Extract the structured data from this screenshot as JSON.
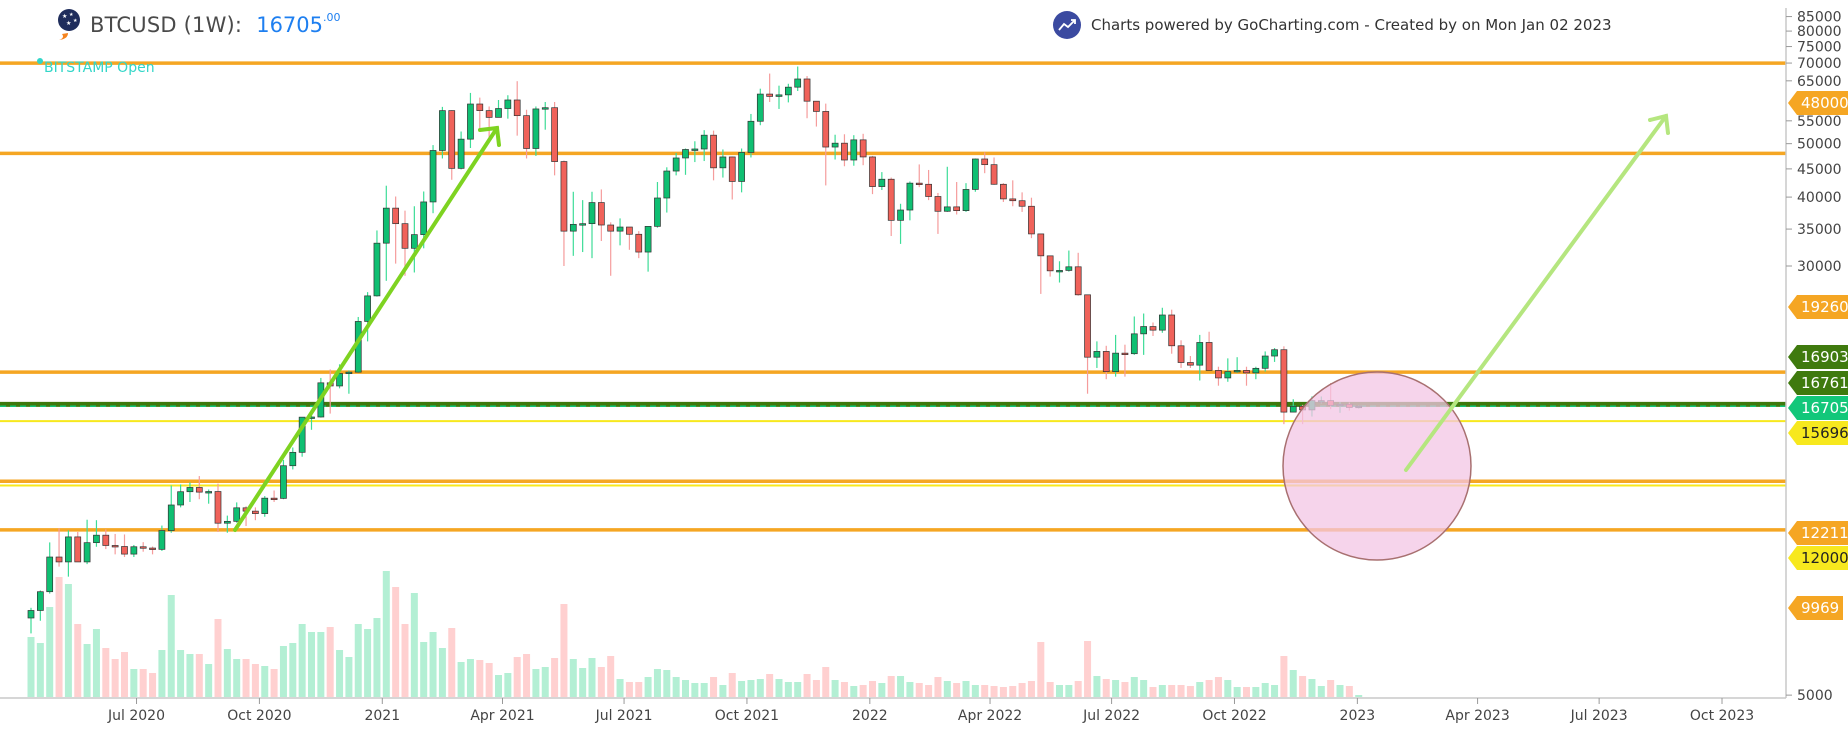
{
  "header": {
    "symbol_title": "BTCUSD (1W):",
    "price": "16705",
    "price_decimals": ".00",
    "source_label": "BITSTAMP Open",
    "credit": "Charts powered by GoCharting.com - Created by  on Mon Jan 02 2023",
    "icons": [
      "astronaut-avatar-icon",
      "trending-up-logo-icon"
    ]
  },
  "colors": {
    "up": "#0fbf72",
    "down": "#f0625a",
    "up_wick": "#3ddc97",
    "down_wick": "#f59c9c",
    "vol_up": "#b3efd4",
    "vol_down": "#ffd0d0",
    "orange": "#f5a623",
    "dark_green": "#3f7a0e",
    "yellow": "#f7e81e",
    "current": "#12c77a",
    "arrow_up": "#7ed321",
    "arrow_target": "#b5e67f",
    "zone_fill": "#f3c6e4",
    "zone_stroke": "#a87070",
    "title_price": "#1e7ff0",
    "source": "#33d6c8"
  },
  "chart_data": {
    "type": "candlestick",
    "interval": "1W",
    "start_week": "2020-04-13",
    "y_scale": "log",
    "ylim": [
      5000,
      88000
    ],
    "y_ticks": [
      85000,
      80000,
      75000,
      70000,
      65000,
      55000,
      50000,
      45000,
      40000,
      35000,
      30000,
      5000
    ],
    "x_ticks": [
      "Jul 2020",
      "Oct 2020",
      "2021",
      "Apr 2021",
      "Jul 2021",
      "Oct 2021",
      "2022",
      "Apr 2022",
      "Jul 2022",
      "Oct 2022",
      "2023",
      "Apr 2023",
      "Jul 2023",
      "Oct 2023"
    ],
    "x_tick_dates": [
      "2020-07-01",
      "2020-10-01",
      "2021-01-01",
      "2021-04-01",
      "2021-07-01",
      "2021-10-01",
      "2022-01-01",
      "2022-04-01",
      "2022-07-01",
      "2022-10-01",
      "2023-01-01",
      "2023-04-01",
      "2023-07-01",
      "2023-10-01"
    ],
    "ohlc": [
      [
        6900,
        7200,
        6470,
        7120
      ],
      [
        7120,
        7740,
        6820,
        7700
      ],
      [
        7700,
        9460,
        7640,
        8900
      ],
      [
        8900,
        10030,
        8550,
        8720
      ],
      [
        8720,
        9950,
        8200,
        9680
      ],
      [
        9680,
        9880,
        8800,
        8720
      ],
      [
        8720,
        10400,
        8640,
        9450
      ],
      [
        9450,
        10380,
        9290,
        9750
      ],
      [
        9750,
        9990,
        9200,
        9340
      ],
      [
        9340,
        9800,
        9000,
        9300
      ],
      [
        9300,
        9780,
        8900,
        9010
      ],
      [
        9010,
        9360,
        8900,
        9290
      ],
      [
        9290,
        9470,
        9100,
        9240
      ],
      [
        9240,
        9300,
        9000,
        9190
      ],
      [
        9190,
        10150,
        9130,
        9940
      ],
      [
        9940,
        12000,
        9850,
        11060
      ],
      [
        11060,
        12050,
        10950,
        11690
      ],
      [
        11690,
        12150,
        11200,
        11900
      ],
      [
        11900,
        12480,
        11330,
        11670
      ],
      [
        11670,
        11800,
        11120,
        11700
      ],
      [
        11700,
        12090,
        9880,
        10250
      ],
      [
        10250,
        10580,
        9850,
        10330
      ],
      [
        10330,
        11180,
        10270,
        10930
      ],
      [
        10930,
        11000,
        10130,
        10780
      ],
      [
        10780,
        10950,
        10380,
        10670
      ],
      [
        10670,
        11480,
        10530,
        11380
      ],
      [
        11380,
        11750,
        11200,
        11370
      ],
      [
        11370,
        13350,
        11330,
        13030
      ],
      [
        13030,
        14060,
        12830,
        13780
      ],
      [
        13780,
        15960,
        13530,
        15960
      ],
      [
        15960,
        16480,
        15140,
        15970
      ],
      [
        15970,
        18800,
        15930,
        18420
      ],
      [
        18420,
        19480,
        16200,
        18180
      ],
      [
        18180,
        19900,
        18000,
        19150
      ],
      [
        19150,
        19400,
        17600,
        19260
      ],
      [
        19260,
        24250,
        19200,
        23800
      ],
      [
        23800,
        26900,
        21900,
        26480
      ],
      [
        26480,
        34800,
        26400,
        33000
      ],
      [
        33000,
        41950,
        28200,
        38200
      ],
      [
        38200,
        40100,
        30300,
        35800
      ],
      [
        35800,
        37800,
        28800,
        32300
      ],
      [
        32300,
        38500,
        29200,
        34200
      ],
      [
        34200,
        40950,
        32300,
        39200
      ],
      [
        39200,
        49700,
        37400,
        48600
      ],
      [
        48600,
        58300,
        47000,
        57400
      ],
      [
        57400,
        57500,
        43000,
        45100
      ],
      [
        45100,
        52600,
        44900,
        50950
      ],
      [
        50950,
        61800,
        49100,
        59000
      ],
      [
        59000,
        60600,
        53300,
        57400
      ],
      [
        57400,
        58400,
        50400,
        55800
      ],
      [
        55800,
        60000,
        55800,
        57900
      ],
      [
        57900,
        61200,
        55500,
        60000
      ],
      [
        60000,
        64900,
        51700,
        56200
      ],
      [
        56200,
        57600,
        47000,
        49000
      ],
      [
        49000,
        58400,
        47500,
        57800
      ],
      [
        57800,
        59500,
        53000,
        58100
      ],
      [
        58100,
        59500,
        43800,
        46400
      ],
      [
        46400,
        46600,
        30000,
        34700
      ],
      [
        34700,
        40900,
        31300,
        35700
      ],
      [
        35700,
        39500,
        31800,
        35800
      ],
      [
        35800,
        40900,
        31000,
        39100
      ],
      [
        39100,
        41300,
        33300,
        35600
      ],
      [
        35600,
        36000,
        28800,
        34700
      ],
      [
        34700,
        36600,
        32700,
        35300
      ],
      [
        35300,
        35100,
        32100,
        34250
      ],
      [
        34250,
        34700,
        31000,
        31800
      ],
      [
        31800,
        35400,
        29300,
        35400
      ],
      [
        35400,
        42600,
        35200,
        39850
      ],
      [
        39850,
        45300,
        37500,
        44600
      ],
      [
        44600,
        48100,
        43800,
        47100
      ],
      [
        47100,
        49000,
        43900,
        48800
      ],
      [
        48800,
        50500,
        46300,
        48900
      ],
      [
        48900,
        52900,
        46500,
        51800
      ],
      [
        51800,
        52800,
        42900,
        45200
      ],
      [
        45200,
        48800,
        43400,
        47300
      ],
      [
        47300,
        47400,
        39600,
        42700
      ],
      [
        42700,
        49000,
        40800,
        48200
      ],
      [
        48200,
        56600,
        47200,
        54900
      ],
      [
        54900,
        62900,
        54000,
        61500
      ],
      [
        61500,
        67000,
        59500,
        60900
      ],
      [
        60900,
        63700,
        57800,
        61300
      ],
      [
        61300,
        64200,
        59400,
        63300
      ],
      [
        63300,
        69000,
        62300,
        65500
      ],
      [
        65500,
        66300,
        55600,
        59700
      ],
      [
        59700,
        59400,
        53700,
        57200
      ],
      [
        57200,
        59100,
        42000,
        49300
      ],
      [
        49300,
        51900,
        46800,
        50100
      ],
      [
        50100,
        52000,
        45500,
        46700
      ],
      [
        46700,
        51800,
        45600,
        50800
      ],
      [
        50800,
        52100,
        45700,
        47300
      ],
      [
        47300,
        47500,
        40500,
        41800
      ],
      [
        41800,
        44400,
        41200,
        43100
      ],
      [
        43100,
        43400,
        34000,
        36300
      ],
      [
        36300,
        38900,
        32900,
        37900
      ],
      [
        37900,
        42700,
        36300,
        42400
      ],
      [
        42400,
        45850,
        41700,
        42200
      ],
      [
        42200,
        44800,
        39500,
        40100
      ],
      [
        40100,
        40700,
        34300,
        37700
      ],
      [
        37700,
        45400,
        37600,
        38400
      ],
      [
        38400,
        42600,
        37200,
        37800
      ],
      [
        37800,
        42400,
        37600,
        41300
      ],
      [
        41300,
        47000,
        40900,
        46900
      ],
      [
        46900,
        48200,
        44200,
        45800
      ],
      [
        45800,
        47200,
        42100,
        42200
      ],
      [
        42200,
        42400,
        39200,
        39700
      ],
      [
        39700,
        42900,
        38500,
        39400
      ],
      [
        39400,
        40800,
        37600,
        38500
      ],
      [
        38500,
        39900,
        33700,
        34300
      ],
      [
        34300,
        34200,
        26700,
        31300
      ],
      [
        31300,
        31000,
        28700,
        29400
      ],
      [
        29400,
        30600,
        28000,
        29450
      ],
      [
        29450,
        32000,
        29300,
        29900
      ],
      [
        29900,
        31700,
        26500,
        26600
      ],
      [
        26600,
        26600,
        17600,
        20500
      ],
      [
        20500,
        21900,
        19600,
        21000
      ],
      [
        21000,
        21500,
        18700,
        19300
      ],
      [
        19300,
        22500,
        18900,
        20850
      ],
      [
        20850,
        21600,
        18900,
        20800
      ],
      [
        20800,
        24300,
        20700,
        22600
      ],
      [
        22600,
        24600,
        20700,
        23300
      ],
      [
        23300,
        23700,
        22400,
        22950
      ],
      [
        22950,
        25200,
        22700,
        24450
      ],
      [
        24450,
        25000,
        20800,
        21500
      ],
      [
        21500,
        22000,
        19600,
        20050
      ],
      [
        20050,
        20600,
        19600,
        19830
      ],
      [
        19830,
        22500,
        18600,
        21800
      ],
      [
        21800,
        22800,
        19400,
        19400
      ],
      [
        19400,
        19700,
        18200,
        18800
      ],
      [
        18800,
        20400,
        18500,
        19300
      ],
      [
        19300,
        20500,
        19200,
        19400
      ],
      [
        19400,
        19700,
        18200,
        19200
      ],
      [
        19200,
        19700,
        18700,
        19570
      ],
      [
        19570,
        21000,
        19300,
        20600
      ],
      [
        20600,
        21300,
        20100,
        21150
      ],
      [
        21150,
        21450,
        15500,
        16300
      ],
      [
        16300,
        17200,
        16300,
        16700
      ],
      [
        16700,
        16800,
        15500,
        16450
      ],
      [
        16450,
        17400,
        16000,
        17100
      ],
      [
        17100,
        17400,
        16900,
        17100
      ],
      [
        17100,
        18400,
        16500,
        16770
      ],
      [
        16770,
        17000,
        16250,
        16840
      ],
      [
        16840,
        16960,
        16400,
        16620
      ],
      [
        16620,
        16760,
        16550,
        16705
      ]
    ],
    "volume": [
      60,
      54,
      90,
      120,
      113,
      73,
      53,
      68,
      49,
      38,
      45,
      28,
      28,
      24,
      47,
      102,
      47,
      43,
      43,
      33,
      78,
      48,
      38,
      38,
      33,
      31,
      28,
      51,
      54,
      73,
      65,
      65,
      70,
      47,
      40,
      73,
      68,
      79,
      126,
      110,
      73,
      104,
      55,
      65,
      49,
      69,
      35,
      38,
      37,
      34,
      22,
      24,
      40,
      43,
      28,
      30,
      39,
      93,
      38,
      29,
      39,
      30,
      41,
      18,
      15,
      15,
      20,
      28,
      27,
      20,
      17,
      14,
      14,
      20,
      12,
      24,
      16,
      17,
      18,
      23,
      18,
      15,
      15,
      23,
      17,
      30,
      17,
      15,
      11,
      12,
      16,
      14,
      21,
      21,
      15,
      14,
      12,
      20,
      16,
      14,
      16,
      12,
      12,
      11,
      10,
      11,
      14,
      16,
      55,
      15,
      12,
      12,
      16,
      56,
      21,
      18,
      17,
      15,
      20,
      17,
      10,
      12,
      12,
      12,
      11,
      15,
      17,
      20,
      17,
      10,
      10,
      10,
      14,
      12,
      41,
      27,
      21,
      18,
      11,
      17,
      12,
      11,
      2
    ],
    "levels": [
      {
        "value": 70000,
        "color": "orange"
      },
      {
        "value": 48000,
        "color": "orange"
      },
      {
        "value": 19260,
        "color": "orange"
      },
      {
        "value": 16903,
        "color": "dark_green"
      },
      {
        "value": 16761,
        "color": "dark_green"
      },
      {
        "value": 15696,
        "color": "yellow"
      },
      {
        "value": 12211,
        "color": "orange"
      },
      {
        "value": 12000,
        "color": "yellow"
      },
      {
        "value": 9969,
        "color": "orange"
      }
    ],
    "current_price": 16705,
    "price_tags": [
      {
        "label": "48000",
        "color": "orange"
      },
      {
        "label": "19260",
        "color": "orange"
      },
      {
        "label": "16903",
        "color": "dark_green"
      },
      {
        "label": "16761",
        "color": "dark_green"
      },
      {
        "label": "16705",
        "color": "current"
      },
      {
        "label": "15696",
        "color": "yellow"
      },
      {
        "label": "12211",
        "color": "orange"
      },
      {
        "label": "12000",
        "color": "yellow"
      },
      {
        "label": "9969",
        "color": "orange"
      }
    ]
  }
}
